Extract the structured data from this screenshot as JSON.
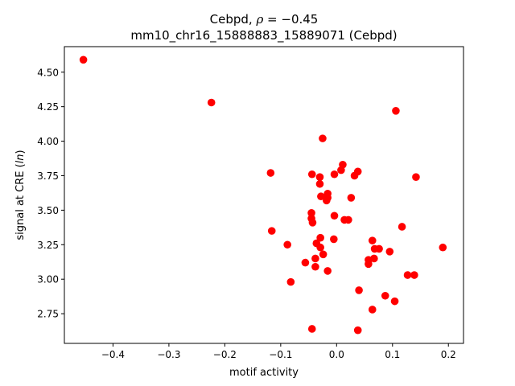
{
  "chart_data": {
    "type": "scatter",
    "title_line1_prefix": "Cebpd, ",
    "title_line1_rho": "ρ",
    "title_line1_suffix": " = −0.45",
    "title_line2": "mm10_chr16_15888883_15889071 (Cebpd)",
    "xlabel": "motif activity",
    "ylabel_prefix": "signal at CRE (",
    "ylabel_italic": "ln",
    "ylabel_suffix": ")",
    "xlim": [
      -0.487,
      0.227
    ],
    "ylim": [
      2.535,
      4.685
    ],
    "xticks": [
      -0.4,
      -0.3,
      -0.2,
      -0.1,
      0.0,
      0.1,
      0.2
    ],
    "xtick_labels": [
      "−0.4",
      "−0.3",
      "−0.2",
      "−0.1",
      "0.0",
      "0.1",
      "0.2"
    ],
    "yticks": [
      2.75,
      3.0,
      3.25,
      3.5,
      3.75,
      4.0,
      4.25,
      4.5
    ],
    "ytick_labels": [
      "2.75",
      "3.00",
      "3.25",
      "3.50",
      "3.75",
      "4.00",
      "4.25",
      "4.50"
    ],
    "marker_color": "#ff0000",
    "grid": false,
    "points": [
      {
        "x": -0.453,
        "y": 4.59
      },
      {
        "x": -0.224,
        "y": 4.28
      },
      {
        "x": 0.106,
        "y": 4.22
      },
      {
        "x": -0.025,
        "y": 4.02
      },
      {
        "x": 0.011,
        "y": 3.83
      },
      {
        "x": -0.118,
        "y": 3.77
      },
      {
        "x": -0.044,
        "y": 3.76
      },
      {
        "x": -0.004,
        "y": 3.76
      },
      {
        "x": 0.008,
        "y": 3.79
      },
      {
        "x": 0.038,
        "y": 3.78
      },
      {
        "x": 0.032,
        "y": 3.75
      },
      {
        "x": 0.142,
        "y": 3.74
      },
      {
        "x": -0.03,
        "y": 3.74
      },
      {
        "x": -0.03,
        "y": 3.69
      },
      {
        "x": -0.016,
        "y": 3.62
      },
      {
        "x": -0.028,
        "y": 3.6
      },
      {
        "x": -0.016,
        "y": 3.59
      },
      {
        "x": -0.018,
        "y": 3.57
      },
      {
        "x": 0.026,
        "y": 3.59
      },
      {
        "x": -0.045,
        "y": 3.48
      },
      {
        "x": -0.004,
        "y": 3.46
      },
      {
        "x": -0.045,
        "y": 3.44
      },
      {
        "x": -0.043,
        "y": 3.41
      },
      {
        "x": 0.014,
        "y": 3.43
      },
      {
        "x": 0.021,
        "y": 3.43
      },
      {
        "x": -0.116,
        "y": 3.35
      },
      {
        "x": 0.117,
        "y": 3.38
      },
      {
        "x": -0.029,
        "y": 3.3
      },
      {
        "x": -0.005,
        "y": 3.29
      },
      {
        "x": -0.088,
        "y": 3.25
      },
      {
        "x": -0.036,
        "y": 3.26
      },
      {
        "x": -0.029,
        "y": 3.23
      },
      {
        "x": 0.064,
        "y": 3.28
      },
      {
        "x": 0.068,
        "y": 3.22
      },
      {
        "x": 0.076,
        "y": 3.22
      },
      {
        "x": 0.095,
        "y": 3.2
      },
      {
        "x": 0.19,
        "y": 3.23
      },
      {
        "x": -0.024,
        "y": 3.18
      },
      {
        "x": -0.038,
        "y": 3.15
      },
      {
        "x": 0.057,
        "y": 3.14
      },
      {
        "x": 0.067,
        "y": 3.15
      },
      {
        "x": -0.056,
        "y": 3.12
      },
      {
        "x": 0.057,
        "y": 3.11
      },
      {
        "x": -0.038,
        "y": 3.09
      },
      {
        "x": -0.016,
        "y": 3.06
      },
      {
        "x": 0.127,
        "y": 3.03
      },
      {
        "x": 0.139,
        "y": 3.03
      },
      {
        "x": -0.082,
        "y": 2.98
      },
      {
        "x": 0.04,
        "y": 2.92
      },
      {
        "x": 0.087,
        "y": 2.88
      },
      {
        "x": 0.104,
        "y": 2.84
      },
      {
        "x": 0.064,
        "y": 2.78
      },
      {
        "x": -0.044,
        "y": 2.64
      },
      {
        "x": 0.038,
        "y": 2.63
      }
    ]
  }
}
